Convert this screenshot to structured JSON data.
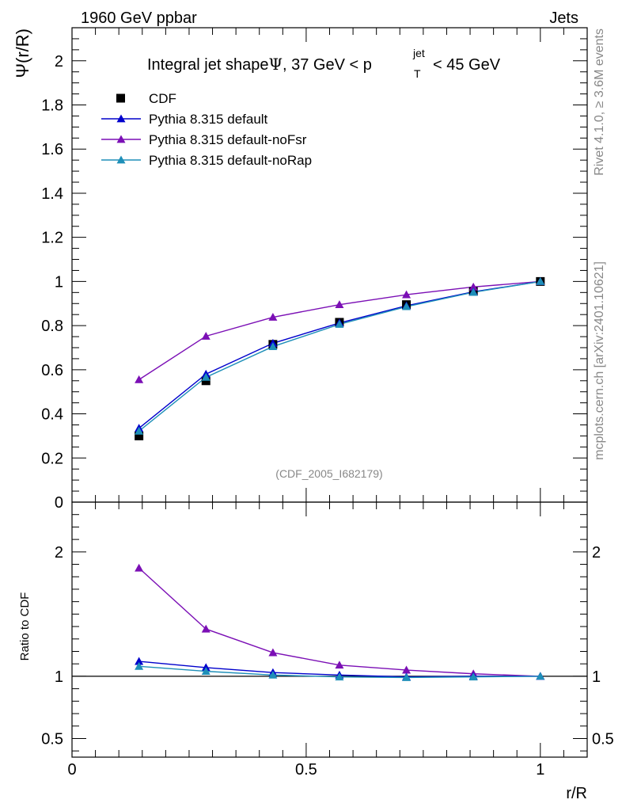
{
  "header": {
    "left": "1960 GeV ppbar",
    "right": "Jets"
  },
  "side_labels": {
    "rivet": "Rivet 4.1.0, ≥ 3.6M events",
    "mcplots": "mcplots.cern.ch [arXiv:2401.10621]"
  },
  "chart_data": [
    {
      "id": "main",
      "type": "line",
      "title": "Integral jet shape Ψ, 37 GeV < p_T^jet < 45 GeV",
      "title_parts": {
        "pre": "Integral jet shape",
        "psi": "Ψ",
        "mid": ", 37 GeV < p",
        "sub": "T",
        "sup": "jet",
        "post": "< 45 GeV"
      },
      "ylabel": "Ψ(r/R)",
      "xlim": [
        0,
        1.1
      ],
      "ylim": [
        0,
        2.15
      ],
      "y_ticks": [
        "0",
        "0.2",
        "0.4",
        "0.6",
        "0.8",
        "1",
        "1.2",
        "1.4",
        "1.6",
        "1.8",
        "2"
      ],
      "watermark": "(CDF_2005_I682179)",
      "x": [
        0.143,
        0.286,
        0.429,
        0.571,
        0.714,
        0.857,
        1.0
      ],
      "series": [
        {
          "name": "CDF",
          "marker": "square",
          "color": "#000000",
          "values": [
            0.3,
            0.55,
            0.715,
            0.815,
            0.895,
            0.955,
            1.0
          ]
        },
        {
          "name": "Pythia 8.315 default",
          "marker": "triangle",
          "color": "#0000cc",
          "values": [
            0.335,
            0.58,
            0.72,
            0.812,
            0.89,
            0.953,
            1.0
          ]
        },
        {
          "name": "Pythia 8.315 default-noFsr",
          "marker": "triangle",
          "color": "#7b0fb5",
          "values": [
            0.555,
            0.752,
            0.838,
            0.895,
            0.94,
            0.975,
            1.0
          ]
        },
        {
          "name": "Pythia 8.315 default-noRap",
          "marker": "triangle",
          "color": "#1e8fb8",
          "values": [
            0.322,
            0.566,
            0.705,
            0.806,
            0.886,
            0.951,
            1.0
          ]
        }
      ]
    },
    {
      "id": "ratio",
      "type": "line",
      "ylabel": "Ratio to CDF",
      "xlabel": "r/R",
      "xlim": [
        0,
        1.1
      ],
      "ylim": [
        0.35,
        2.4
      ],
      "x_ticks": [
        "0",
        "0.5",
        "1"
      ],
      "y_ticks": [
        "0.5",
        "1",
        "2"
      ],
      "reference_line": 1,
      "x": [
        0.143,
        0.286,
        0.429,
        0.571,
        0.714,
        0.857,
        1.0
      ],
      "series": [
        {
          "name": "Pythia 8.315 default-noFsr",
          "color": "#7b0fb5",
          "values": [
            1.87,
            1.38,
            1.19,
            1.09,
            1.05,
            1.02,
            1.0
          ]
        },
        {
          "name": "Pythia 8.315 default",
          "color": "#0000cc",
          "values": [
            1.12,
            1.07,
            1.03,
            1.01,
            0.995,
            1.0,
            1.0
          ]
        },
        {
          "name": "Pythia 8.315 default-noRap",
          "color": "#1e8fb8",
          "values": [
            1.08,
            1.04,
            1.01,
            0.995,
            0.99,
            0.995,
            1.0
          ]
        }
      ]
    }
  ]
}
